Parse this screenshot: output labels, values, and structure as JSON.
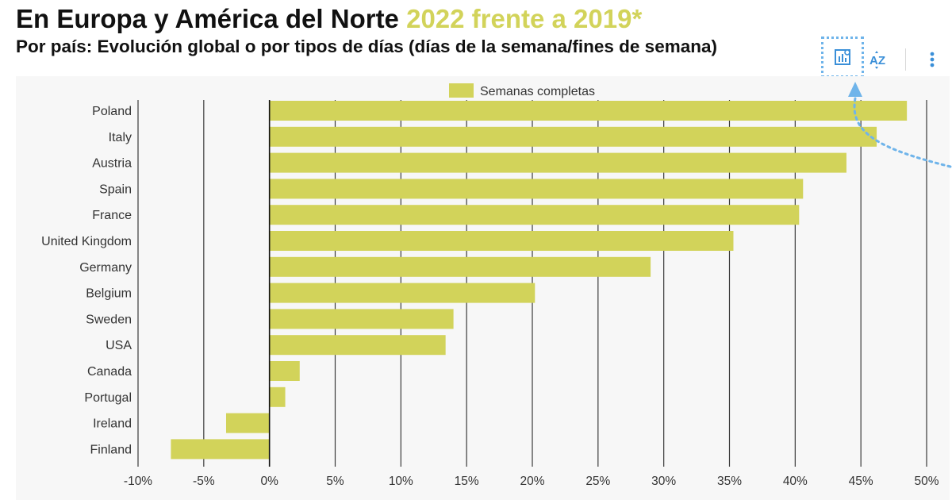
{
  "header": {
    "title_main": "En Europa y América del Norte",
    "title_accent": "2022 frente a 2019*",
    "subtitle": "Por país: Evolución global o por tipos de días (días de la semana/fines de semana)"
  },
  "toolbar": {
    "sort_label": "AZ",
    "icons": [
      "chart-settings-icon",
      "sort-az-icon",
      "more-vertical-icon"
    ],
    "accent_color": "#3a8fd8"
  },
  "colors": {
    "bar": "#d2d35a",
    "plot_background": "#f7f7f7",
    "gridline": "#3a3a3a",
    "title_accent": "#d2d35a"
  },
  "chart_data": {
    "type": "bar",
    "orientation": "horizontal",
    "categories": [
      "Poland",
      "Italy",
      "Austria",
      "Spain",
      "France",
      "United Kingdom",
      "Germany",
      "Belgium",
      "Sweden",
      "USA",
      "Canada",
      "Portugal",
      "Ireland",
      "Finland"
    ],
    "series": [
      {
        "name": "Semanas completas",
        "values": [
          48.5,
          46.2,
          43.9,
          40.6,
          40.3,
          35.3,
          29.0,
          20.2,
          14.0,
          13.4,
          2.3,
          1.2,
          -3.3,
          -7.5
        ]
      }
    ],
    "x_ticks": [
      -10,
      -5,
      0,
      5,
      10,
      15,
      20,
      25,
      30,
      35,
      40,
      45,
      50
    ],
    "x_tick_labels": [
      "-10%",
      "-5%",
      "0%",
      "5%",
      "10%",
      "15%",
      "20%",
      "25%",
      "30%",
      "35%",
      "40%",
      "45%",
      "50%"
    ],
    "xlim": [
      -10,
      50
    ],
    "grid": true,
    "legend_position": "top-center"
  }
}
